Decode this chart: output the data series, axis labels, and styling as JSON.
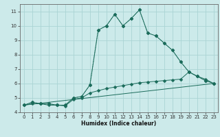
{
  "xlabel": "Humidex (Indice chaleur)",
  "bg_color": "#cceaea",
  "grid_color": "#aad4d4",
  "line_color": "#1a6b5a",
  "xlim": [
    -0.5,
    23.5
  ],
  "ylim": [
    4.0,
    11.5
  ],
  "xticks": [
    0,
    1,
    2,
    3,
    4,
    5,
    6,
    7,
    8,
    9,
    10,
    11,
    12,
    13,
    14,
    15,
    16,
    17,
    18,
    19,
    20,
    21,
    22,
    23
  ],
  "yticks": [
    4,
    5,
    6,
    7,
    8,
    9,
    10,
    11
  ],
  "series": [
    {
      "x": [
        0,
        1,
        2,
        3,
        4,
        5,
        6,
        7,
        8,
        9,
        10,
        11,
        12,
        13,
        14,
        15,
        16,
        17,
        18,
        19,
        20,
        21,
        22,
        23
      ],
      "y": [
        4.5,
        4.7,
        4.6,
        4.6,
        4.5,
        4.5,
        5.0,
        5.1,
        5.9,
        9.7,
        10.0,
        10.8,
        10.0,
        10.5,
        11.1,
        9.5,
        9.3,
        8.8,
        8.3,
        7.5,
        6.8,
        6.5,
        6.2,
        6.0
      ],
      "style": "dotted",
      "marker": "D",
      "markersize": 2.5
    },
    {
      "x": [
        0,
        1,
        2,
        3,
        4,
        5,
        6,
        7,
        8,
        9,
        10,
        11,
        12,
        13,
        14,
        15,
        16,
        17,
        18,
        19,
        20,
        21,
        22,
        23
      ],
      "y": [
        4.5,
        4.7,
        4.6,
        4.6,
        4.5,
        4.5,
        5.0,
        5.1,
        5.9,
        9.7,
        10.0,
        10.8,
        10.0,
        10.5,
        11.1,
        9.5,
        9.3,
        8.8,
        8.3,
        7.5,
        6.8,
        6.5,
        6.2,
        6.0
      ],
      "style": "solid",
      "marker": "D",
      "markersize": 2.5
    },
    {
      "x": [
        0,
        23
      ],
      "y": [
        4.5,
        6.0
      ],
      "style": "solid",
      "marker": null,
      "markersize": 0
    },
    {
      "x": [
        0,
        1,
        2,
        3,
        4,
        5,
        6,
        7,
        8,
        9,
        10,
        11,
        12,
        13,
        14,
        15,
        16,
        17,
        18,
        19,
        20,
        21,
        22,
        23
      ],
      "y": [
        4.5,
        4.6,
        4.6,
        4.5,
        4.5,
        4.45,
        4.9,
        5.0,
        5.35,
        5.5,
        5.65,
        5.75,
        5.85,
        5.95,
        6.05,
        6.1,
        6.15,
        6.2,
        6.25,
        6.3,
        6.8,
        6.5,
        6.3,
        6.0
      ],
      "style": "solid",
      "marker": "D",
      "markersize": 2.5
    }
  ]
}
